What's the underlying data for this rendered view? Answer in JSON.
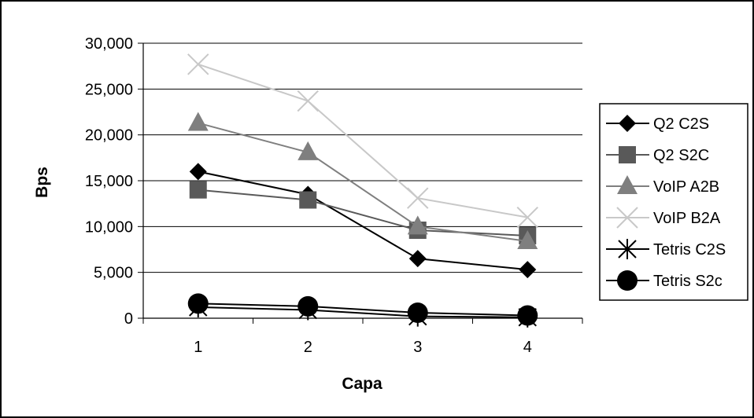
{
  "chart_data": {
    "type": "line",
    "title": "",
    "xlabel": "Capa",
    "ylabel": "Bps",
    "categories": [
      "1",
      "2",
      "3",
      "4"
    ],
    "ylim": [
      0,
      30000
    ],
    "ytick_step": 5000,
    "ytick_labels": [
      "0",
      "5,000",
      "10,000",
      "15,000",
      "20,000",
      "25,000",
      "30,000"
    ],
    "grid": "horizontal",
    "legend_position": "right",
    "series": [
      {
        "name": "Q2 C2S",
        "values": [
          16000,
          13500,
          6500,
          5300
        ],
        "color": "#000000",
        "marker": "diamond"
      },
      {
        "name": "Q2 S2C",
        "values": [
          14000,
          12900,
          9600,
          9000
        ],
        "color": "#595959",
        "marker": "square"
      },
      {
        "name": "VoIP A2B",
        "values": [
          21300,
          18100,
          10000,
          8400
        ],
        "color": "#7f7f7f",
        "marker": "triangle"
      },
      {
        "name": "VoIP B2A",
        "values": [
          27700,
          23700,
          13100,
          11000
        ],
        "color": "#c8c8c8",
        "marker": "x"
      },
      {
        "name": "Tetris C2S",
        "values": [
          1200,
          900,
          200,
          100
        ],
        "color": "#000000",
        "marker": "star"
      },
      {
        "name": "Tetris S2c",
        "values": [
          1600,
          1300,
          600,
          300
        ],
        "color": "#000000",
        "marker": "circle"
      }
    ]
  }
}
